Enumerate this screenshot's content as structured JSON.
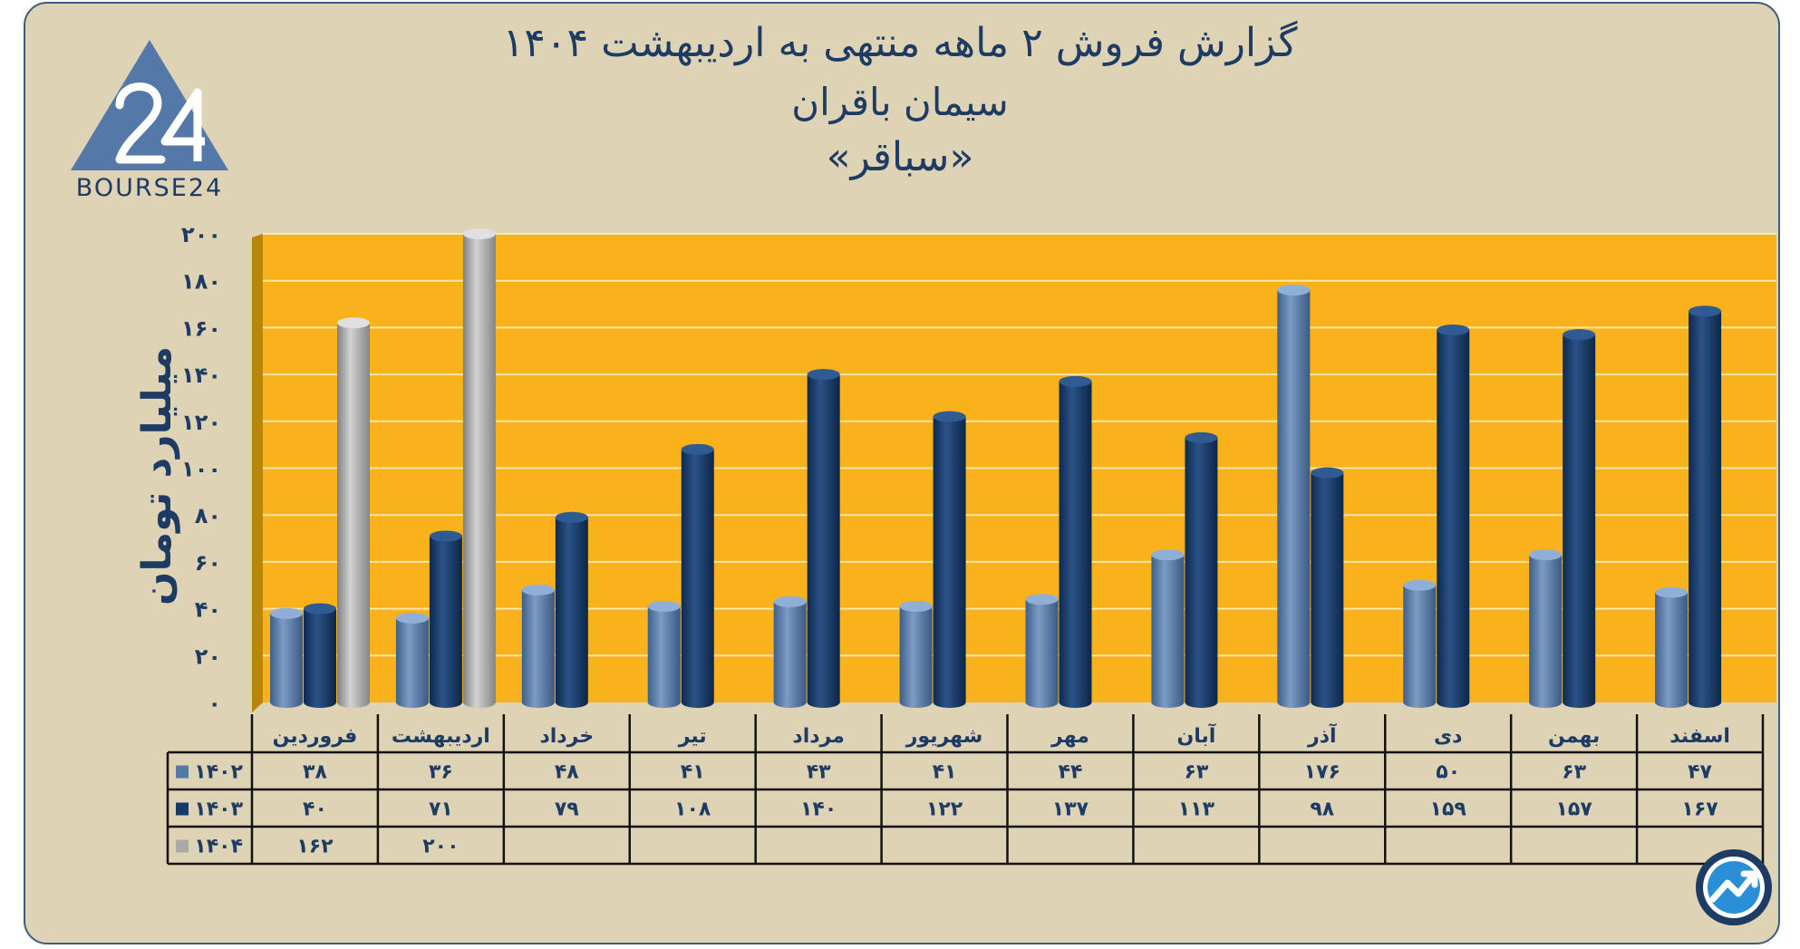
{
  "title": {
    "line1": "گزارش  فروش ۲ ماهه منتهی به اردیبهشت ۱۴۰۴",
    "line2": "سیمان باقران",
    "line3": "«سباقر»"
  },
  "logo": {
    "text": "BOURSE24",
    "icon": "bourse24-logo-icon"
  },
  "badge": {
    "icon": "trend-arrow-icon"
  },
  "colors": {
    "plot_background": "#f9b21c",
    "series_1402": "#5479a8",
    "series_1403": "#173a67",
    "series_1404": "#a9a9a9",
    "frame_background": "#dfd3b6",
    "text": "#1d3b63"
  },
  "chart_data": {
    "type": "bar",
    "title": "گزارش  فروش ۲ ماهه منتهی به اردیبهشت ۱۴۰۴",
    "subtitle": "سیمان باقران «سباقر»",
    "ylabel": "میلیارد تومان",
    "xlabel": "",
    "ylim": [
      0,
      200
    ],
    "yticks": [
      "۰",
      "۲۰",
      "۴۰",
      "۶۰",
      "۸۰",
      "۱۰۰",
      "۱۲۰",
      "۱۴۰",
      "۱۶۰",
      "۱۸۰",
      "۲۰۰"
    ],
    "grid": true,
    "legend": "table-bottom",
    "categories": [
      "فروردین",
      "اردیبهشت",
      "خرداد",
      "تیر",
      "مرداد",
      "شهریور",
      "مهر",
      "آبان",
      "آذر",
      "دی",
      "بهمن",
      "اسفند"
    ],
    "series": [
      {
        "name": "۱۴۰۲",
        "color": "#5479a8",
        "values": [
          38,
          36,
          48,
          41,
          43,
          41,
          44,
          63,
          176,
          50,
          63,
          47
        ],
        "labels": [
          "۳۸",
          "۳۶",
          "۴۸",
          "۴۱",
          "۴۳",
          "۴۱",
          "۴۴",
          "۶۳",
          "۱۷۶",
          "۵۰",
          "۶۳",
          "۴۷"
        ]
      },
      {
        "name": "۱۴۰۳",
        "color": "#173a67",
        "values": [
          40,
          71,
          79,
          108,
          140,
          122,
          137,
          113,
          98,
          159,
          157,
          167
        ],
        "labels": [
          "۴۰",
          "۷۱",
          "۷۹",
          "۱۰۸",
          "۱۴۰",
          "۱۲۲",
          "۱۳۷",
          "۱۱۳",
          "۹۸",
          "۱۵۹",
          "۱۵۷",
          "۱۶۷"
        ]
      },
      {
        "name": "۱۴۰۴",
        "color": "#a9a9a9",
        "values": [
          162,
          200,
          null,
          null,
          null,
          null,
          null,
          null,
          null,
          null,
          null,
          null
        ],
        "labels": [
          "۱۶۲",
          "۲۰۰",
          "",
          "",
          "",
          "",
          "",
          "",
          "",
          "",
          "",
          ""
        ]
      }
    ]
  }
}
